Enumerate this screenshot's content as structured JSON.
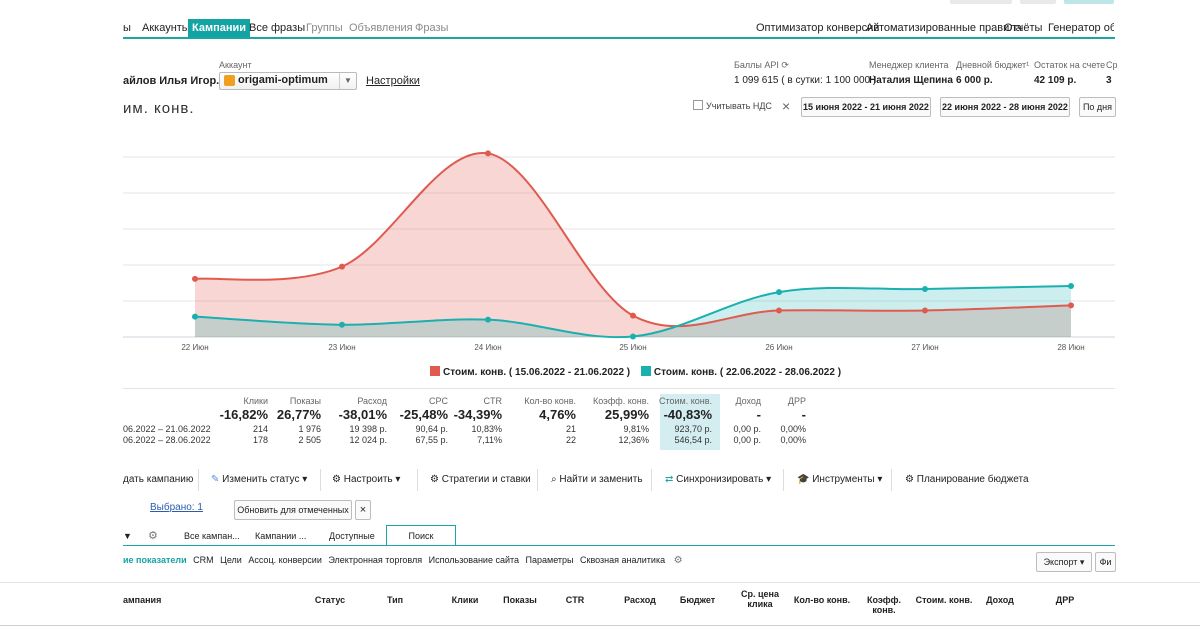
{
  "nav": {
    "tabs": [
      {
        "label": "ы",
        "state": "normal"
      },
      {
        "label": "Аккаунты",
        "state": "normal"
      },
      {
        "label": "Кампании",
        "state": "active"
      },
      {
        "label": "Все фразы",
        "state": "normal"
      },
      {
        "label": "Группы",
        "state": "dim"
      },
      {
        "label": "Объявления",
        "state": "dim"
      },
      {
        "label": "Фразы",
        "state": "dim"
      }
    ],
    "right_tabs": [
      "Оптимизатор конверсий",
      "Автоматизированные правила",
      "Отчёты",
      "Генератор объ"
    ]
  },
  "account": {
    "user": "айлов Илья Игор...",
    "account_label": "Аккаунт",
    "account_value": "origami-optimum",
    "settings_link": "Настройки",
    "api_label": "Баллы API",
    "api_value": "1 099 615",
    "api_per_day": "( в сутки: 1 100 000 )",
    "manager_label": "Менеджер клиента",
    "manager_value": "Наталия Щепина",
    "budget_label": "Дневной бюджет¹",
    "budget_value": "6 000 р.",
    "balance_label": "Остаток на счете",
    "balance_value": "42 109 р.",
    "extra_label": "Ср",
    "extra_value": "3"
  },
  "chart_header": {
    "title": "им. конв.",
    "vat_label": "Учитывать НДС",
    "range1": "15 июня 2022 - 21 июня 2022",
    "range2": "22 июня 2022 - 28 июня 2022",
    "by_day": "По дня"
  },
  "chart_data": {
    "type": "area",
    "categories": [
      "22 Июн",
      "23 Июн",
      "24 Июн",
      "25 Июн",
      "26 Июн",
      "27 Июн",
      "28 Июн"
    ],
    "series": [
      {
        "name": "Стоим. конв. ( 15.06.2022 - 21.06.2022 )",
        "color": "#e05a4f",
        "values": [
          1140,
          1380,
          3600,
          420,
          520,
          520,
          620
        ]
      },
      {
        "name": "Стоим. конв. ( 22.06.2022 - 28.06.2022 )",
        "color": "#1ab0b0",
        "values": [
          400,
          240,
          340,
          10,
          880,
          940,
          1000
        ]
      }
    ],
    "ylim": [
      0,
      4000
    ],
    "grid": true,
    "legend": "bottom"
  },
  "stats": {
    "columns": [
      {
        "head": "Клики",
        "pct": "-16,82%",
        "v1": "214",
        "v2": "178"
      },
      {
        "head": "Показы",
        "pct": "26,77%",
        "v1": "1 976",
        "v2": "2 505"
      },
      {
        "head": "Расход",
        "pct": "-38,01%",
        "v1": "19 398 р.",
        "v2": "12 024 р."
      },
      {
        "head": "CPC",
        "pct": "-25,48%",
        "v1": "90,64 р.",
        "v2": "67,55 р."
      },
      {
        "head": "CTR",
        "pct": "-34,39%",
        "v1": "10,83%",
        "v2": "7,11%"
      },
      {
        "head": "Кол-во конв.",
        "pct": "4,76%",
        "v1": "21",
        "v2": "22"
      },
      {
        "head": "Коэфф. конв.",
        "pct": "25,99%",
        "v1": "9,81%",
        "v2": "12,36%"
      },
      {
        "head": "Стоим. конв.",
        "pct": "-40,83%",
        "v1": "923,70 р.",
        "v2": "546,54 р."
      },
      {
        "head": "Доход",
        "pct": "-",
        "v1": "0,00 р.",
        "v2": "0,00 р."
      },
      {
        "head": "ДРР",
        "pct": "-",
        "v1": "0,00%",
        "v2": "0,00%"
      }
    ],
    "period1": "06.2022 – 21.06.2022",
    "period2": "06.2022 – 28.06.2022"
  },
  "toolbar": {
    "create": "дать кампанию",
    "status": "Изменить статус",
    "configure": "Настроить",
    "strategies": "Стратегии и ставки",
    "find_replace": "Найти и заменить",
    "sync": "Синхронизировать",
    "tools": "Инструменты",
    "budget_plan": "Планирование бюджета"
  },
  "selection": {
    "selected": "Выбрано: 1",
    "refresh": "Обновить для отмеченных",
    "close": "×"
  },
  "subtabs": [
    "Все кампан...",
    "Кампании ...",
    "Доступные",
    "Поиск"
  ],
  "metric_tabs": [
    "ие показатели",
    "CRM",
    "Цели",
    "Ассоц. конверсии",
    "Электронная торговля",
    "Использование сайта",
    "Параметры",
    "Сквозная аналитика"
  ],
  "export": {
    "label": "Экспорт",
    "filter": "Фи"
  },
  "table": {
    "headers": [
      "ампания",
      "Статус",
      "Тип",
      "Клики",
      "Показы",
      "CTR",
      "Расход",
      "Бюджет",
      "Ср. цена клика",
      "Кол-во конв.",
      "Коэфф. конв.",
      "Стоим. конв.",
      "Доход",
      "ДРР"
    ]
  }
}
